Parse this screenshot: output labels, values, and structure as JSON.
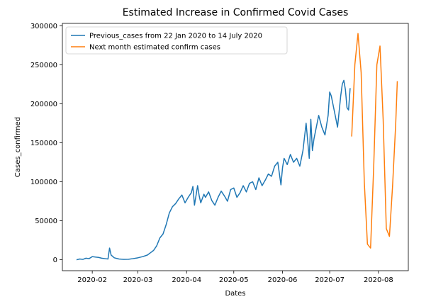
{
  "chart_data": {
    "type": "line",
    "title": "Estimated Increase in Confirmed Covid Cases",
    "xlabel": "Dates",
    "ylabel": "Cases_confirmed",
    "xlim": [
      "2020-01-13",
      "2020-08-20"
    ],
    "ylim": [
      -14000,
      303000
    ],
    "x_ticks": [
      "2020-02-01",
      "2020-03-01",
      "2020-04-01",
      "2020-05-01",
      "2020-06-01",
      "2020-07-01",
      "2020-08-01"
    ],
    "x_tick_labels": [
      "2020-02",
      "2020-03",
      "2020-04",
      "2020-05",
      "2020-06",
      "2020-07",
      "2020-08"
    ],
    "y_ticks": [
      0,
      50000,
      100000,
      150000,
      200000,
      250000,
      300000
    ],
    "y_tick_labels": [
      "0",
      "50000",
      "100000",
      "150000",
      "200000",
      "250000",
      "300000"
    ],
    "grid": false,
    "legend_position": "upper-left",
    "series": [
      {
        "name": "Previous_cases from 22 Jan 2020 to 14 July 2020",
        "color": "#1f77b4",
        "x": [
          "2020-01-22",
          "2020-01-24",
          "2020-01-26",
          "2020-01-28",
          "2020-01-30",
          "2020-02-01",
          "2020-02-03",
          "2020-02-05",
          "2020-02-07",
          "2020-02-09",
          "2020-02-11",
          "2020-02-12",
          "2020-02-13",
          "2020-02-15",
          "2020-02-18",
          "2020-02-21",
          "2020-02-24",
          "2020-02-27",
          "2020-03-01",
          "2020-03-04",
          "2020-03-07",
          "2020-03-09",
          "2020-03-11",
          "2020-03-13",
          "2020-03-15",
          "2020-03-17",
          "2020-03-19",
          "2020-03-21",
          "2020-03-23",
          "2020-03-25",
          "2020-03-27",
          "2020-03-29",
          "2020-03-31",
          "2020-04-02",
          "2020-04-04",
          "2020-04-05",
          "2020-04-06",
          "2020-04-08",
          "2020-04-09",
          "2020-04-10",
          "2020-04-12",
          "2020-04-13",
          "2020-04-15",
          "2020-04-17",
          "2020-04-19",
          "2020-04-21",
          "2020-04-23",
          "2020-04-25",
          "2020-04-27",
          "2020-04-29",
          "2020-05-01",
          "2020-05-03",
          "2020-05-05",
          "2020-05-07",
          "2020-05-09",
          "2020-05-11",
          "2020-05-13",
          "2020-05-15",
          "2020-05-17",
          "2020-05-19",
          "2020-05-21",
          "2020-05-23",
          "2020-05-25",
          "2020-05-27",
          "2020-05-29",
          "2020-05-31",
          "2020-06-01",
          "2020-06-02",
          "2020-06-04",
          "2020-06-06",
          "2020-06-08",
          "2020-06-10",
          "2020-06-12",
          "2020-06-14",
          "2020-06-16",
          "2020-06-18",
          "2020-06-19",
          "2020-06-20",
          "2020-06-21",
          "2020-06-22",
          "2020-06-24",
          "2020-06-26",
          "2020-06-28",
          "2020-06-30",
          "2020-07-01",
          "2020-07-02",
          "2020-07-04",
          "2020-07-06",
          "2020-07-08",
          "2020-07-09",
          "2020-07-10",
          "2020-07-11",
          "2020-07-12",
          "2020-07-13",
          "2020-07-14"
        ],
        "values": [
          0,
          1000,
          500,
          2000,
          1500,
          4000,
          3500,
          3000,
          2000,
          1500,
          1000,
          15000,
          6000,
          2500,
          1000,
          500,
          700,
          1500,
          2500,
          4000,
          6000,
          9000,
          12000,
          18000,
          28000,
          33000,
          45000,
          60000,
          68000,
          72000,
          78000,
          83000,
          73000,
          80000,
          86000,
          94000,
          70000,
          95000,
          82000,
          73000,
          84000,
          80000,
          87000,
          76000,
          70000,
          80000,
          88000,
          82000,
          75000,
          90000,
          92000,
          80000,
          86000,
          95000,
          87000,
          98000,
          100000,
          90000,
          105000,
          95000,
          102000,
          110000,
          107000,
          120000,
          125000,
          96000,
          118000,
          130000,
          122000,
          135000,
          125000,
          130000,
          120000,
          140000,
          175000,
          130000,
          180000,
          140000,
          155000,
          165000,
          185000,
          170000,
          160000,
          185000,
          215000,
          210000,
          190000,
          170000,
          210000,
          225000,
          230000,
          218000,
          195000,
          192000,
          220000
        ]
      },
      {
        "name": "Next month estimated confirm cases",
        "color": "#ff7f0e",
        "x": [
          "2020-07-15",
          "2020-07-17",
          "2020-07-19",
          "2020-07-21",
          "2020-07-23",
          "2020-07-25",
          "2020-07-27",
          "2020-07-29",
          "2020-07-31",
          "2020-08-02",
          "2020-08-04",
          "2020-08-06",
          "2020-08-08",
          "2020-08-10",
          "2020-08-12",
          "2020-08-13"
        ],
        "values": [
          158000,
          250000,
          290000,
          240000,
          100000,
          20000,
          15000,
          120000,
          250000,
          274000,
          180000,
          40000,
          30000,
          95000,
          175000,
          229000
        ]
      }
    ]
  }
}
